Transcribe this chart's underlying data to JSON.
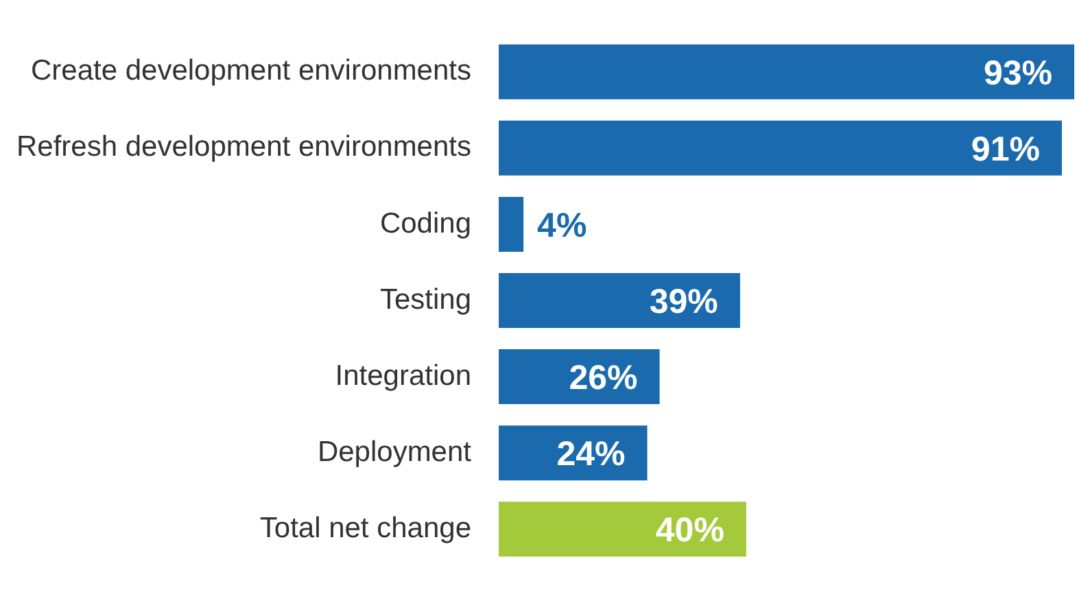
{
  "chart_data": {
    "type": "bar",
    "orientation": "horizontal",
    "categories": [
      "Create development environments",
      "Refresh development environments",
      "Coding",
      "Testing",
      "Integration",
      "Deployment",
      "Total net change"
    ],
    "values": [
      93,
      91,
      4,
      39,
      26,
      24,
      40
    ],
    "colors": [
      "#1a6aad",
      "#1a6aad",
      "#1a6aad",
      "#1a6aad",
      "#1a6aad",
      "#1a6aad",
      "#a4c93a"
    ],
    "value_labels": [
      "93%",
      "91%",
      "4%",
      "39%",
      "26%",
      "24%",
      "40%"
    ],
    "xlim": [
      0,
      93
    ],
    "tick_labels": "y",
    "grid": false,
    "legend": false
  }
}
